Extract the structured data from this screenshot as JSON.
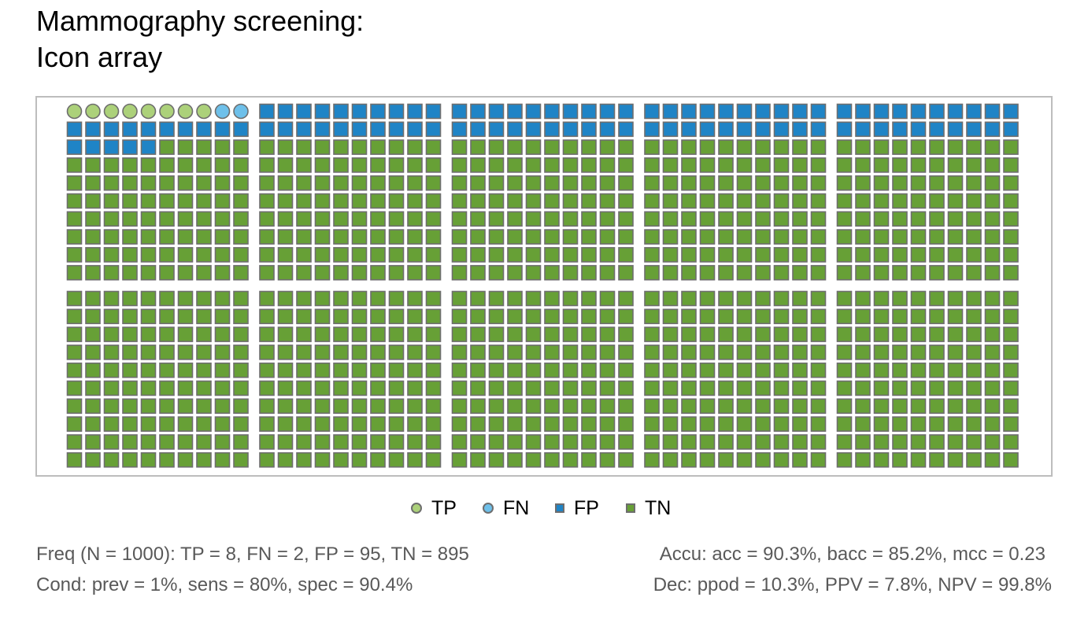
{
  "title": {
    "line1": "Mammography screening:",
    "line2": "Icon array"
  },
  "chart_data": {
    "type": "icon_array",
    "N": 1000,
    "layout": {
      "block_rows": 2,
      "block_cols": 5,
      "icons_per_block_row": 10,
      "icons_per_block_col": 10,
      "fill_order": "row-wise across top blocks, then bottom blocks"
    },
    "categories": [
      {
        "key": "TP",
        "label": "TP",
        "count": 8,
        "shape": "circle",
        "color": "#acd17a"
      },
      {
        "key": "FN",
        "label": "FN",
        "count": 2,
        "shape": "circle",
        "color": "#6ec0ea"
      },
      {
        "key": "FP",
        "label": "FP",
        "count": 95,
        "shape": "square",
        "color": "#1f84c6"
      },
      {
        "key": "TN",
        "label": "TN",
        "count": 895,
        "shape": "square",
        "color": "#67a036"
      }
    ],
    "icon_border_color": "#6e6e6e",
    "frame_color": "#bdbdbd"
  },
  "summary": {
    "freq": "Freq (N = 1000):  TP = 8, FN = 2, FP = 95, TN = 895",
    "cond": "Cond:  prev = 1%, sens = 80%, spec = 90.4%",
    "accu": "Accu:  acc = 90.3%, bacc = 85.2%, mcc = 0.23",
    "dec": "Dec:  ppod = 10.3%, PPV = 7.8%, NPV = 99.8%"
  }
}
